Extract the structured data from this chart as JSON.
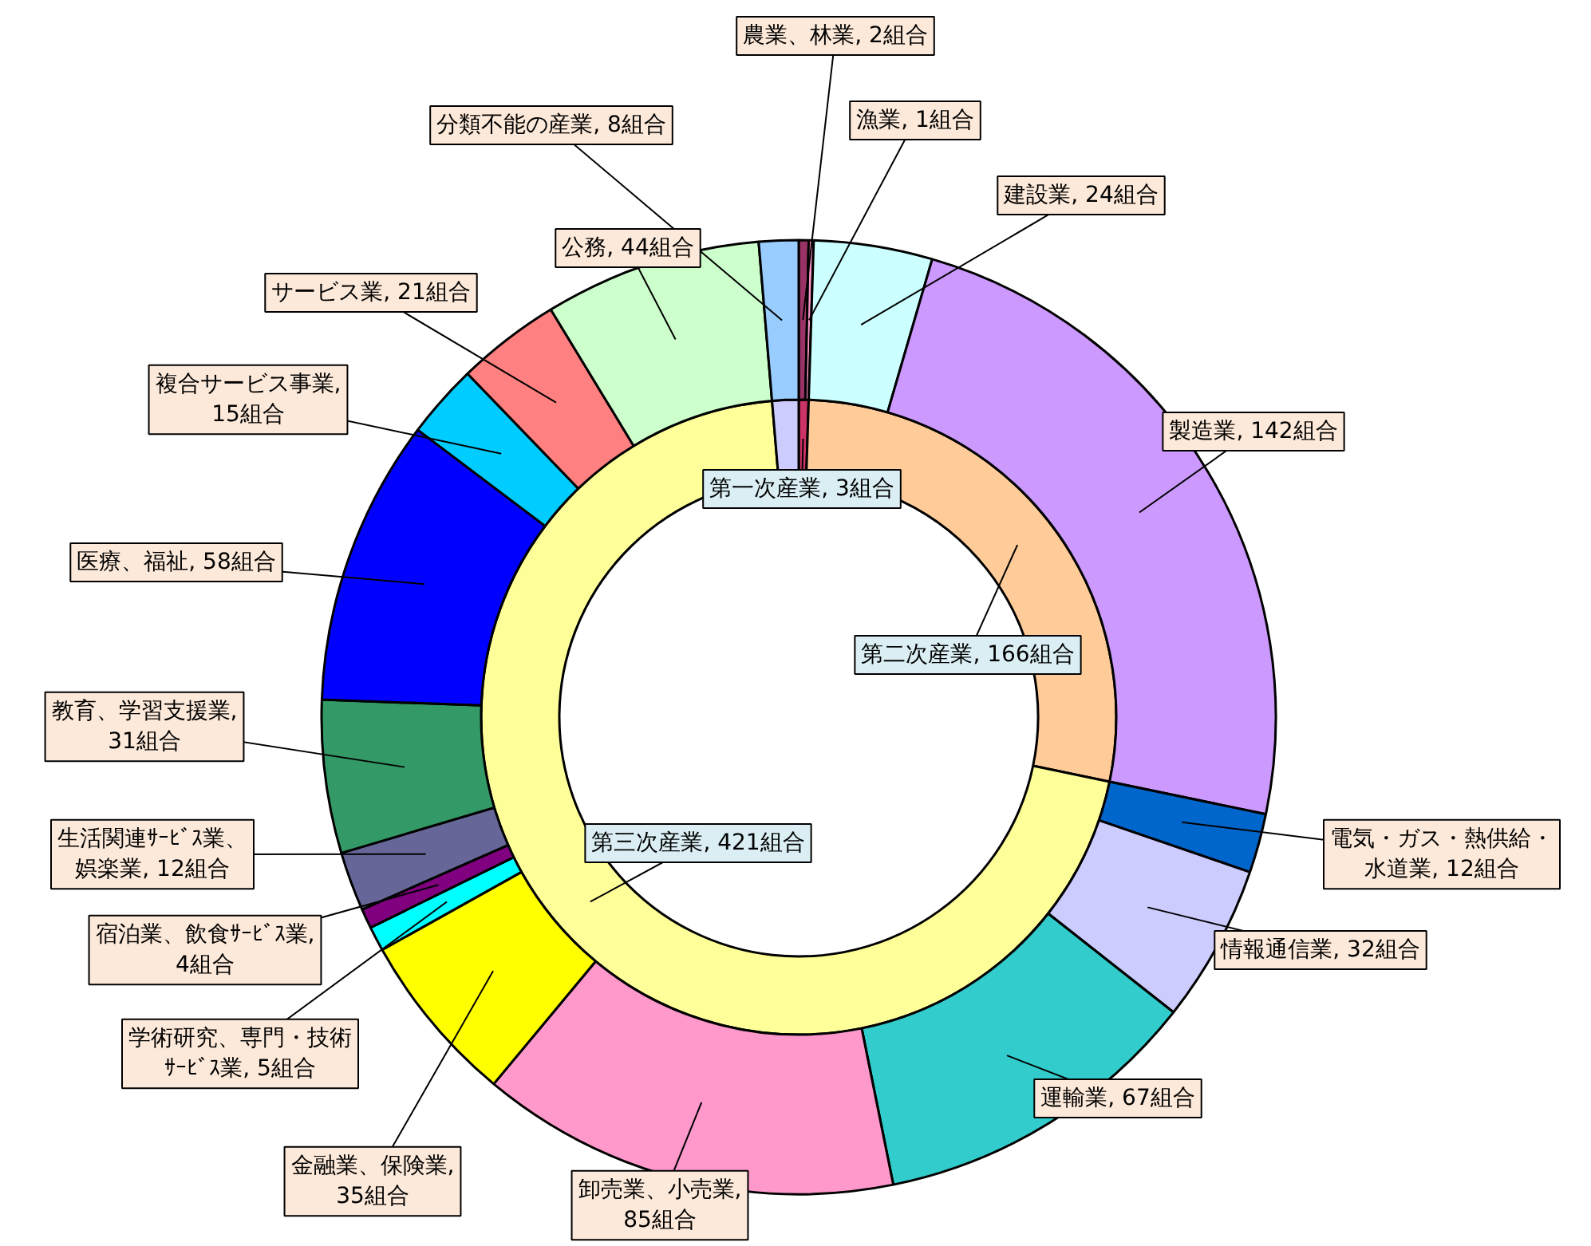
{
  "chart_data": {
    "type": "donut",
    "series": [
      {
        "values": [
          3,
          166,
          421,
          8
        ],
        "value_labels": [
          "第一次産業, 3組合",
          "第二次産業, 166組合",
          "第三次産業, 421組合",
          null
        ],
        "colors": [
          "#cc3366",
          "#ffcc99",
          "#ffff99",
          "#ccccff"
        ]
      },
      {
        "values": [
          2,
          1,
          24,
          142,
          12,
          32,
          67,
          85,
          35,
          5,
          4,
          12,
          31,
          58,
          15,
          21,
          44,
          8
        ],
        "value_labels": [
          "農業、林業, 2組合",
          "漁業, 1組合",
          "建設業, 24組合",
          "製造業, 142組合",
          "電気・ガス・熱供給・水道業, 12組合",
          "情報通信業, 32組合",
          "運輸業, 67組合",
          "卸売業、小売業, 85組合",
          "金融業、保険業, 35組合",
          "学術研究、専門・技術ｻｰﾋﾞｽ業, 5組合",
          "宿泊業、飲食ｻｰﾋﾞｽ業, 4組合",
          "生活関連ｻｰﾋﾞｽ業、娯楽業, 12組合",
          "教育、学習支援業, 31組合",
          "医療、福祉, 58組合",
          "複合サービス事業, 15組合",
          "サービス業, 21組合",
          "公務, 44組合",
          "分類不能の産業, 8組合"
        ],
        "colors": [
          "#993366",
          "#ff99cc",
          "#ccffff",
          "#cc99ff",
          "#0066cc",
          "#ccccff",
          "#33cccc",
          "#ff99cc",
          "#ffff00",
          "#00ffff",
          "#800080",
          "#666699",
          "#339966",
          "#0000ff",
          "#00ccff",
          "#ff8080",
          "#ccffcc",
          "#99ccff"
        ]
      }
    ]
  }
}
